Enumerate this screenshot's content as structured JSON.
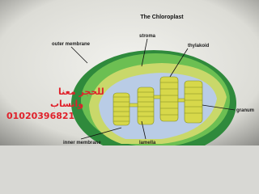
{
  "title": "The Chloroplast",
  "labels": {
    "outer_membrane": "outer membrane",
    "stroma": "stroma",
    "thylakoid": "thylakoid",
    "granum": "granum",
    "inner_membrane": "inner membrane",
    "lamella": "lamella"
  },
  "overlay": {
    "line1": "للحجز معنا",
    "line2": "واتساب",
    "phone": "01020396821"
  }
}
